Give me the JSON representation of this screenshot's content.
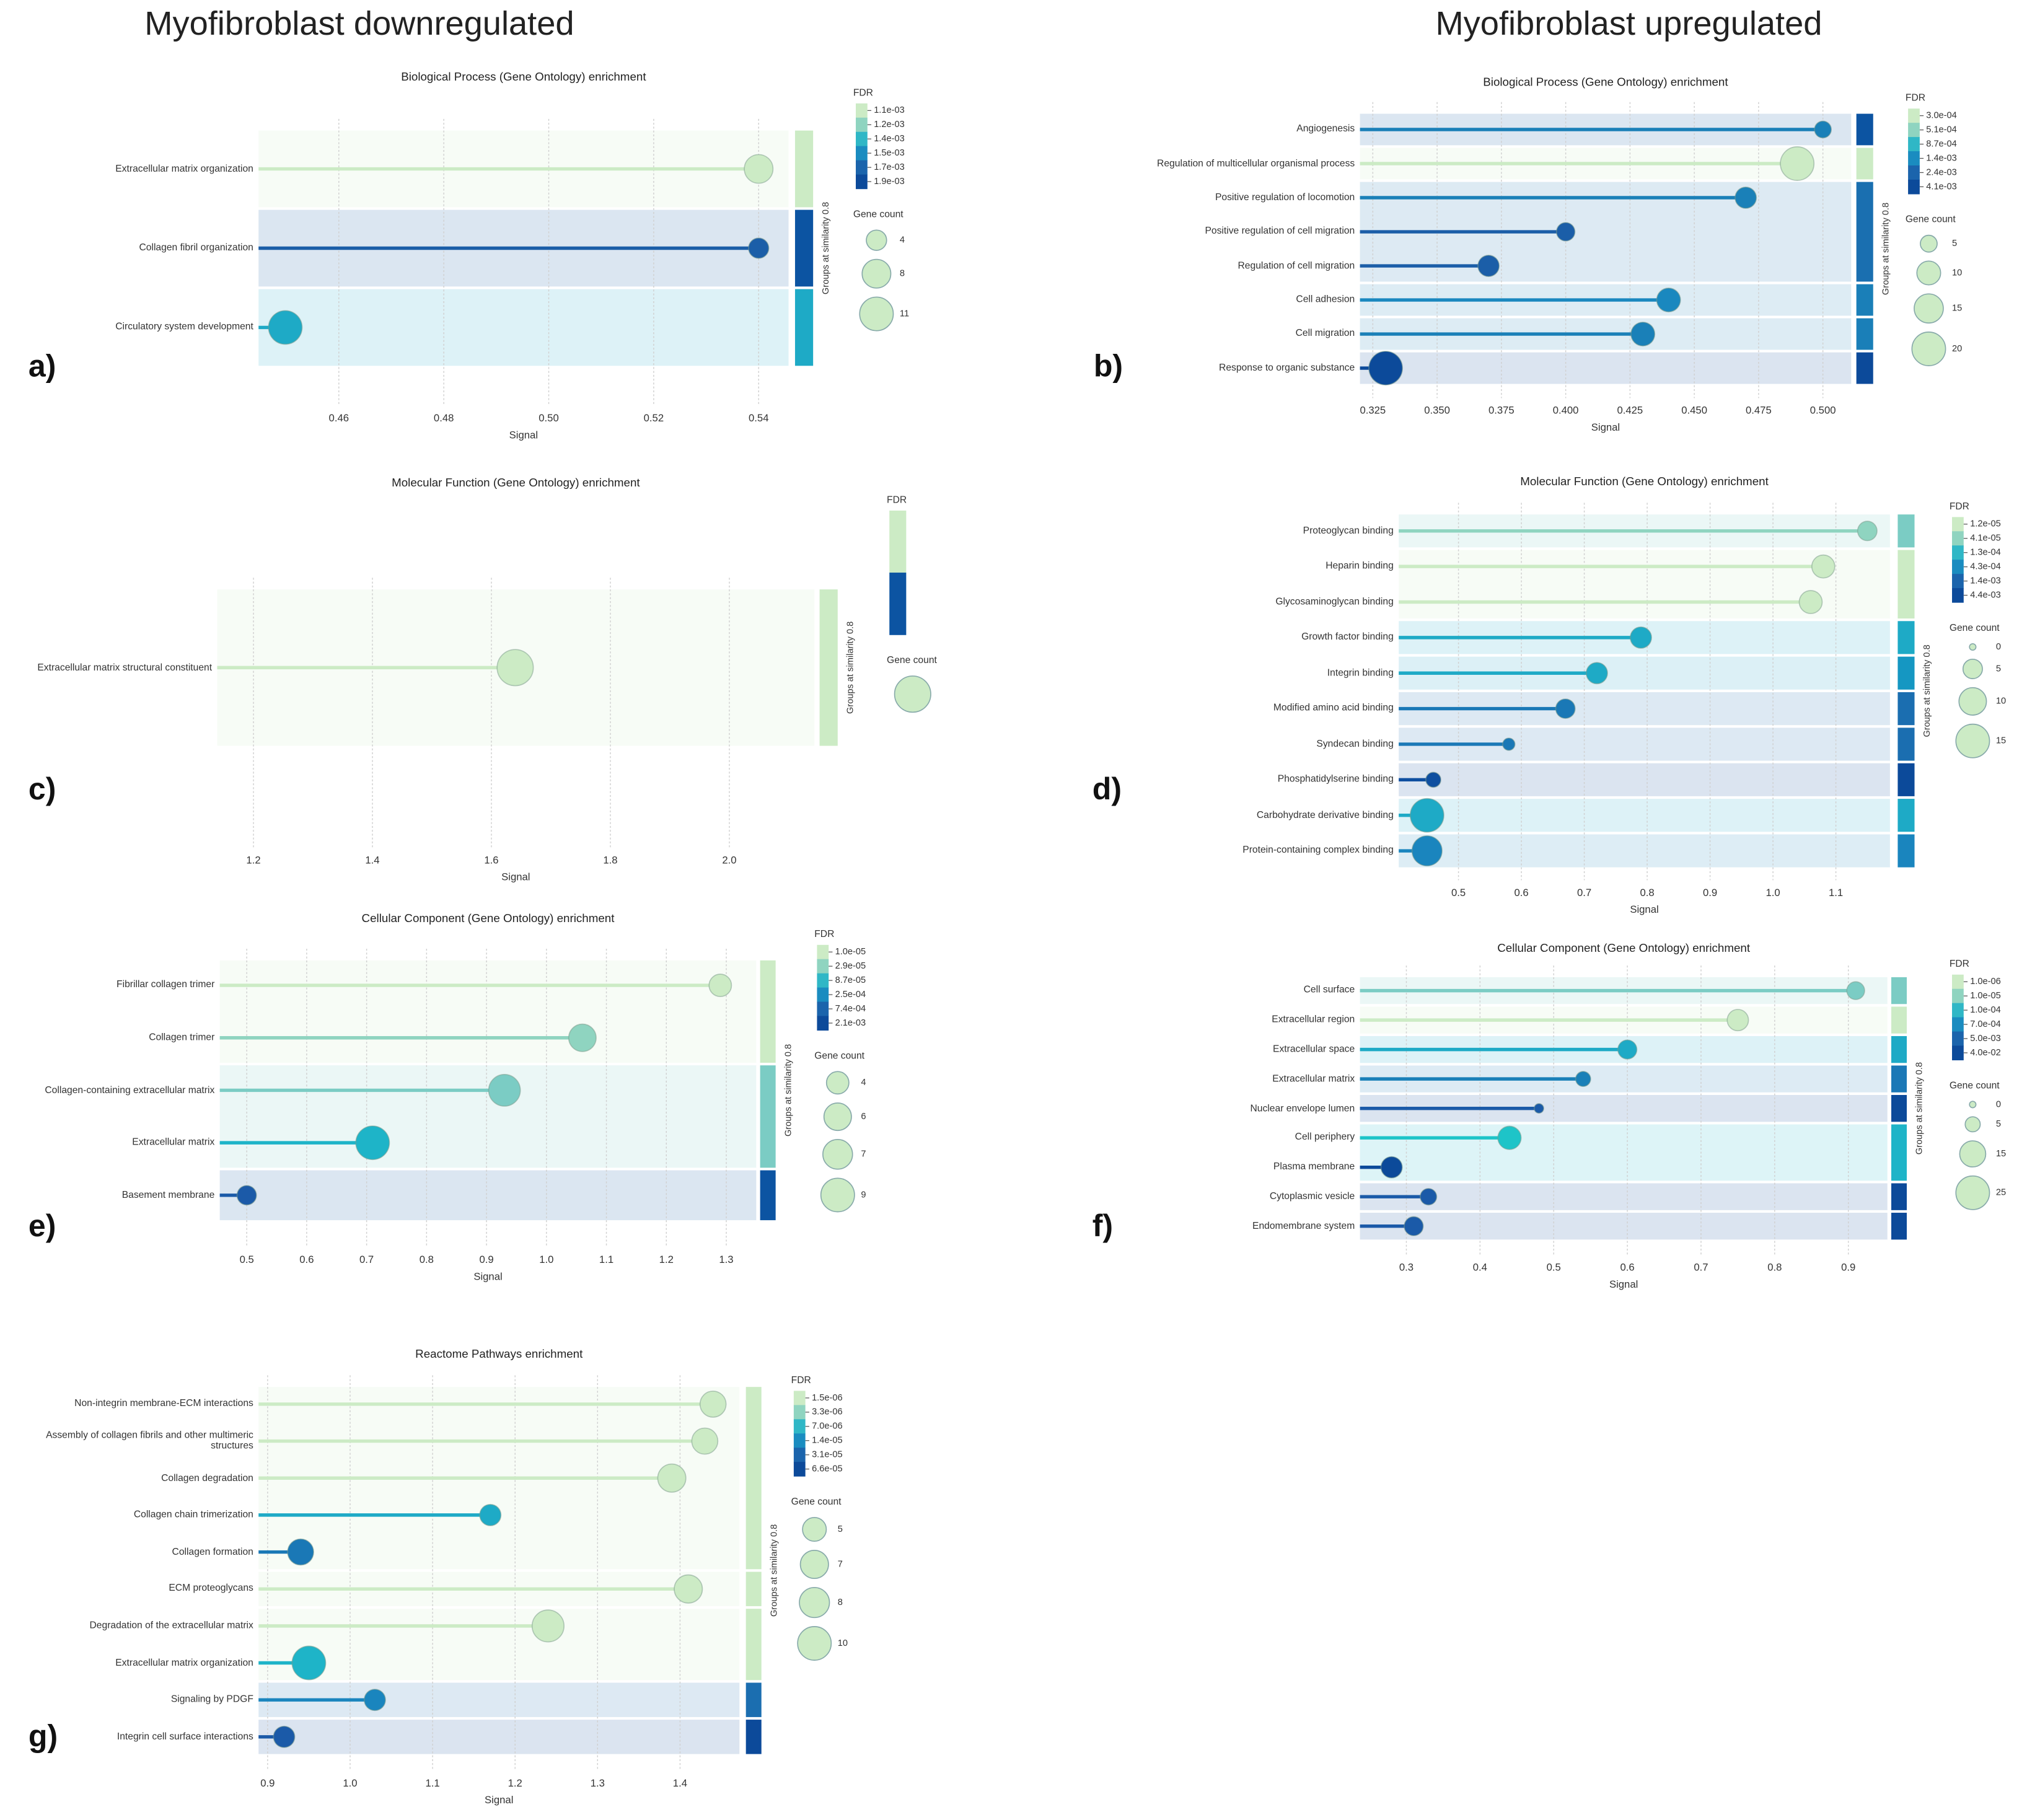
{
  "headers": [
    "Myofibroblast downregulated",
    "Myofibroblast upregulated"
  ],
  "chart_data": [
    {
      "type": "lollipop",
      "panel": "a)",
      "title": "Biological Process (Gene Ontology) enrichment",
      "categories": [
        "Extracellular matrix organization",
        "Collagen fibril organization",
        "Circulatory system development"
      ],
      "values": [
        0.54,
        0.54,
        0.4498
      ],
      "gene_counts": [
        8,
        4,
        11
      ],
      "colors": [
        "#ccebc5",
        "#1b5ea8",
        "#1eaac6"
      ],
      "groups": [
        {
          "rows": 1,
          "color": "#ccebc5"
        },
        {
          "rows": 1,
          "color": "#0c54a2"
        },
        {
          "rows": 1,
          "color": "#1eaac6"
        }
      ],
      "group_label": "Groups at similarity 0.8",
      "xlim": [
        0.4447,
        0.5457
      ],
      "xticks": [
        0.46,
        0.48,
        {
          "value": 0.5,
          "label": "0.50"
        },
        0.52,
        0.54
      ],
      "xlabel": "Signal",
      "grid": true,
      "fdr_legend": {
        "title": "FDR",
        "labels": [
          "1.1e-03",
          "1.2e-03",
          "1.4e-03",
          "1.5e-03",
          "1.7e-03",
          "1.9e-03"
        ],
        "colors": [
          "#ccebc5",
          "#8fd4c0",
          "#2fb7c6",
          "#1a8cc0",
          "#1b64ac",
          "#0c4a9a"
        ]
      },
      "size_legend": {
        "title": "Gene count",
        "sizes": [
          4,
          8,
          11
        ]
      }
    },
    {
      "type": "lollipop",
      "panel": "b)",
      "title": "Biological Process (Gene Ontology) enrichment",
      "categories": [
        "Angiogenesis",
        "Regulation of multicellular organismal process",
        "Positive regulation of locomotion",
        "Positive regulation of cell migration",
        "Regulation of cell migration",
        "Cell adhesion",
        "Cell migration",
        "Response to organic substance"
      ],
      "values": [
        0.5,
        0.49,
        0.47,
        0.4,
        0.37,
        0.44,
        0.43,
        0.33
      ],
      "gene_counts": [
        5,
        20,
        8,
        6,
        8,
        10,
        10,
        20
      ],
      "colors": [
        "#1a80b8",
        "#ccebc5",
        "#1a80b8",
        "#1b5ea8",
        "#1b5ea8",
        "#1a88bf",
        "#1a80b8",
        "#0c4a9a"
      ],
      "groups": [
        {
          "rows": 1,
          "color": "#0c54a2"
        },
        {
          "rows": 1,
          "color": "#ccebc5"
        },
        {
          "rows": 3,
          "color": "#1a6fb0"
        },
        {
          "rows": 1,
          "color": "#1a7fb8"
        },
        {
          "rows": 1,
          "color": "#1a7fb8"
        },
        {
          "rows": 1,
          "color": "#0c4a9a"
        }
      ],
      "group_label": "Groups at similarity 0.8",
      "xlim": [
        0.32,
        0.511
      ],
      "xticks": [
        0.325,
        {
          "value": 0.35,
          "label": "0.350"
        },
        0.375,
        {
          "value": 0.4,
          "label": "0.400"
        },
        0.425,
        {
          "value": 0.45,
          "label": "0.450"
        },
        0.475,
        {
          "value": 0.5,
          "label": "0.500"
        }
      ],
      "xlabel": "Signal",
      "grid": true,
      "fdr_legend": {
        "title": "FDR",
        "labels": [
          "3.0e-04",
          "5.1e-04",
          "8.7e-04",
          "1.4e-03",
          "2.4e-03",
          "4.1e-03"
        ],
        "colors": [
          "#ccebc5",
          "#8fd4c0",
          "#2fb7c6",
          "#1a8cc0",
          "#1b64ac",
          "#0c4a9a"
        ]
      },
      "size_legend": {
        "title": "Gene count",
        "sizes": [
          5,
          10,
          15,
          20
        ]
      }
    },
    {
      "type": "lollipop",
      "panel": "c)",
      "title": "Molecular Function (Gene Ontology) enrichment",
      "categories": [
        "Extracellular matrix structural constituent"
      ],
      "values": [
        1.64
      ],
      "gene_counts": [
        8
      ],
      "colors": [
        "#ccebc5"
      ],
      "groups": [
        {
          "rows": 1,
          "color": "#ccebc5"
        }
      ],
      "group_label": "Groups at similarity 0.8",
      "xlim": [
        1.139,
        2.143
      ],
      "xticks": [
        1.2,
        1.4,
        1.6,
        1.8,
        {
          "value": 2,
          "label": "2.0"
        }
      ],
      "xlabel": "Signal",
      "grid": true,
      "fdr_legend": {
        "title": "FDR",
        "labels": [],
        "colors": [
          "#ccebc5",
          "#0c54a2"
        ]
      },
      "size_legend": {
        "title": "Gene count",
        "sizes": []
      }
    },
    {
      "type": "lollipop",
      "panel": "d)",
      "title": "Molecular Function (Gene Ontology) enrichment",
      "categories": [
        "Proteoglycan binding",
        "Heparin binding",
        "Glycosaminoglycan binding",
        "Growth factor binding",
        "Integrin binding",
        "Modified amino acid binding",
        "Syndecan binding",
        "Phosphatidylserine binding",
        "Carbohydrate derivative binding",
        "Protein-containing complex binding"
      ],
      "values": [
        1.15,
        1.08,
        1.06,
        0.79,
        0.72,
        0.67,
        0.58,
        0.46,
        0.45,
        0.45
      ],
      "gene_counts": [
        5,
        7,
        7,
        6,
        6,
        5,
        2,
        3,
        15,
        12
      ],
      "colors": [
        "#8fd4c0",
        "#ccebc5",
        "#ccebc5",
        "#1eaac6",
        "#1eaac6",
        "#1a78b6",
        "#1a78b6",
        "#0f4fa0",
        "#1eaac6",
        "#1a85be"
      ],
      "groups": [
        {
          "rows": 1,
          "color": "#7bccc4"
        },
        {
          "rows": 2,
          "color": "#ccebc5"
        },
        {
          "rows": 1,
          "color": "#1eaac6"
        },
        {
          "rows": 1,
          "color": "#1597c2"
        },
        {
          "rows": 1,
          "color": "#1b6eb0"
        },
        {
          "rows": 1,
          "color": "#1b6eb0"
        },
        {
          "rows": 1,
          "color": "#0c4a9a"
        },
        {
          "rows": 1,
          "color": "#1eaac6"
        },
        {
          "rows": 1,
          "color": "#1a85be"
        }
      ],
      "group_label": "Groups at similarity 0.8",
      "xlim": [
        0.405,
        1.186
      ],
      "xticks": [
        0.5,
        0.6,
        0.7,
        0.8,
        0.9,
        {
          "value": 1,
          "label": "1.0"
        },
        1.1
      ],
      "xlabel": "Signal",
      "grid": true,
      "fdr_legend": {
        "title": "FDR",
        "labels": [
          "1.2e-05",
          "4.1e-05",
          "1.3e-04",
          "4.3e-04",
          "1.4e-03",
          "4.4e-03"
        ],
        "colors": [
          "#ccebc5",
          "#8fd4c0",
          "#2fb7c6",
          "#1a8cc0",
          "#1b64ac",
          "#0c4a9a"
        ]
      },
      "size_legend": {
        "title": "Gene count",
        "sizes": [
          0,
          5,
          10,
          15
        ]
      }
    },
    {
      "type": "lollipop",
      "panel": "e)",
      "title": "Cellular Component (Gene Ontology) enrichment",
      "categories": [
        "Fibrillar collagen trimer",
        "Collagen trimer",
        "Collagen-containing extracellular matrix",
        "Extracellular matrix",
        "Basement membrane"
      ],
      "values": [
        1.29,
        1.06,
        0.93,
        0.71,
        0.5
      ],
      "gene_counts": [
        4,
        6,
        8,
        9,
        3
      ],
      "colors": [
        "#ccebc5",
        "#8fd4c0",
        "#7bccc4",
        "#1eb4c8",
        "#1b5aa8"
      ],
      "groups": [
        {
          "rows": 2,
          "color": "#ccebc5"
        },
        {
          "rows": 2,
          "color": "#7bccc4"
        },
        {
          "rows": 1,
          "color": "#0c54a2"
        }
      ],
      "group_label": "Groups at similarity 0.8",
      "xlim": [
        0.455,
        1.35
      ],
      "xticks": [
        0.5,
        0.6,
        0.7,
        0.8,
        0.9,
        {
          "value": 1,
          "label": "1.0"
        },
        1.1,
        1.2,
        1.3
      ],
      "xlabel": "Signal",
      "grid": true,
      "fdr_legend": {
        "title": "FDR",
        "labels": [
          "1.0e-05",
          "2.9e-05",
          "8.7e-05",
          "2.5e-04",
          "7.4e-04",
          "2.1e-03"
        ],
        "colors": [
          "#ccebc5",
          "#8fd4c0",
          "#2fb7c6",
          "#1a8cc0",
          "#1b64ac",
          "#0c4a9a"
        ]
      },
      "size_legend": {
        "title": "Gene count",
        "sizes": [
          4,
          6,
          7,
          9
        ]
      }
    },
    {
      "type": "lollipop",
      "panel": "f)",
      "title": "Cellular Component (Gene Ontology) enrichment",
      "categories": [
        "Cell surface",
        "Extracellular region",
        "Extracellular space",
        "Extracellular matrix",
        "Nuclear envelope lumen",
        "Cell periphery",
        "Plasma membrane",
        "Cytoplasmic vesicle",
        "Endomembrane system"
      ],
      "values": [
        0.91,
        0.75,
        0.6,
        0.54,
        0.48,
        0.44,
        0.28,
        0.33,
        0.31
      ],
      "gene_counts": [
        7,
        10,
        8,
        5,
        2,
        12,
        10,
        6,
        8
      ],
      "colors": [
        "#7bccc4",
        "#ccebc5",
        "#1eaac6",
        "#1a80b8",
        "#1b5aa8",
        "#1ec4c8",
        "#0c4a9a",
        "#1b5aa8",
        "#1b5aa8"
      ],
      "groups": [
        {
          "rows": 1,
          "color": "#7bccc4"
        },
        {
          "rows": 1,
          "color": "#ccebc5"
        },
        {
          "rows": 1,
          "color": "#1eaac6"
        },
        {
          "rows": 1,
          "color": "#1b78b6"
        },
        {
          "rows": 1,
          "color": "#0c4a9a"
        },
        {
          "rows": 2,
          "color": "#1eb4c8"
        },
        {
          "rows": 1,
          "color": "#0c4a9a"
        },
        {
          "rows": 1,
          "color": "#0c4a9a"
        }
      ],
      "group_label": "Groups at similarity 0.8",
      "xlim": [
        0.237,
        0.953
      ],
      "xticks": [
        0.3,
        0.4,
        0.5,
        0.6,
        0.7,
        0.8,
        0.9
      ],
      "xlabel": "Signal",
      "grid": true,
      "fdr_legend": {
        "title": "FDR",
        "labels": [
          "1.0e-06",
          "1.0e-05",
          "1.0e-04",
          "7.0e-04",
          "5.0e-03",
          "4.0e-02"
        ],
        "colors": [
          "#ccebc5",
          "#8fd4c0",
          "#2fb7c6",
          "#1a8cc0",
          "#1b64ac",
          "#0c4a9a"
        ]
      },
      "size_legend": {
        "title": "Gene count",
        "sizes": [
          0,
          5,
          15,
          25
        ]
      }
    },
    {
      "type": "lollipop",
      "panel": "g)",
      "title": "Reactome Pathways enrichment",
      "categories": [
        "Non-integrin membrane-ECM interactions",
        "Assembly of collagen fibrils and other multimeric structures",
        "Collagen degradation",
        "Collagen chain trimerization",
        "Collagen formation",
        "ECM proteoglycans",
        "Degradation of the extracellular matrix",
        "Extracellular matrix organization",
        "Signaling by PDGF",
        "Integrin cell surface interactions"
      ],
      "values": [
        1.44,
        1.43,
        1.39,
        1.17,
        0.94,
        1.41,
        1.24,
        0.95,
        1.03,
        0.92
      ],
      "gene_counts": [
        6,
        6,
        7,
        4,
        6,
        7,
        9,
        10,
        4,
        4
      ],
      "colors": [
        "#ccebc5",
        "#ccebc5",
        "#ccebc5",
        "#1eaac6",
        "#1a78b6",
        "#ccebc5",
        "#ccebc5",
        "#1eb4c8",
        "#1a85be",
        "#1b5aa8"
      ],
      "groups": [
        {
          "rows": 5,
          "color": "#ccebc5"
        },
        {
          "rows": 1,
          "color": "#ccebc5"
        },
        {
          "rows": 2,
          "color": "#ccebc5"
        },
        {
          "rows": 1,
          "color": "#1b6eb0"
        },
        {
          "rows": 1,
          "color": "#0c4a9a"
        }
      ],
      "group_label": "Groups at similarity 0.8",
      "xlim": [
        0.889,
        1.472
      ],
      "xticks": [
        0.9,
        {
          "value": 1,
          "label": "1.0"
        },
        1.1,
        1.2,
        1.3,
        1.4
      ],
      "xlabel": "Signal",
      "grid": true,
      "fdr_legend": {
        "title": "FDR",
        "labels": [
          "1.5e-06",
          "3.3e-06",
          "7.0e-06",
          "1.4e-05",
          "3.1e-05",
          "6.6e-05"
        ],
        "colors": [
          "#ccebc5",
          "#8fd4c0",
          "#2fb7c6",
          "#1a8cc0",
          "#1b64ac",
          "#0c4a9a"
        ]
      },
      "size_legend": {
        "title": "Gene count",
        "sizes": [
          5,
          7,
          8,
          10
        ]
      }
    }
  ]
}
